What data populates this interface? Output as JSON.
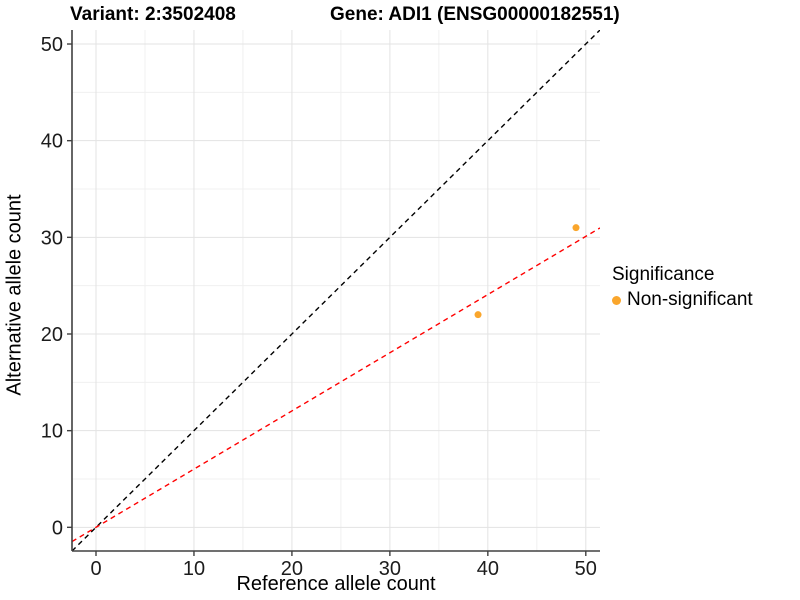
{
  "header": {
    "variant_title": "Variant: 2:3502408",
    "gene_title": "Gene: ADI1 (ENSG00000182551)"
  },
  "legend": {
    "title": "Significance",
    "items": [
      {
        "label": "Non-significant",
        "color": "#FAA62C",
        "marker": "dot"
      }
    ]
  },
  "chart_data": {
    "type": "scatter",
    "xlabel": "Reference allele count",
    "ylabel": "Alternative allele count",
    "xlim": [
      -2.45,
      51.45
    ],
    "ylim": [
      -2.45,
      51.45
    ],
    "x_ticks": [
      0,
      10,
      20,
      30,
      40,
      50
    ],
    "y_ticks": [
      0,
      10,
      20,
      30,
      40,
      50
    ],
    "x_minor_ticks": [
      5,
      15,
      25,
      35,
      45
    ],
    "y_minor_ticks": [
      5,
      15,
      25,
      35,
      45
    ],
    "grid": "major+minor",
    "legend_position": "right",
    "series": [
      {
        "name": "Non-significant",
        "color": "#FAA62C",
        "points": [
          {
            "x": 39,
            "y": 22
          },
          {
            "x": 49,
            "y": 31
          }
        ]
      }
    ],
    "reference_lines": [
      {
        "name": "identity-line",
        "slope": 1,
        "intercept": 0,
        "color": "#000000",
        "style": "dashed"
      },
      {
        "name": "fit-line",
        "slope": 0.602,
        "intercept": 0,
        "color": "#FF0000",
        "style": "dashed"
      }
    ],
    "style": {
      "grid_major_color": "#E3E3E3",
      "grid_minor_color": "#F0F0F0",
      "axis_color": "#404040",
      "tick_label_color": "#1c1c1c",
      "panel_background": "#FFFFFF"
    }
  }
}
